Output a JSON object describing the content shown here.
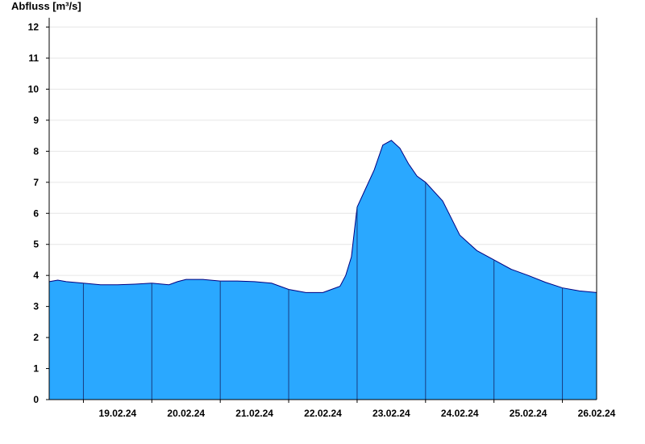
{
  "chart_data": {
    "type": "area",
    "title": "",
    "xlabel": "",
    "ylabel": "Abfluss [m³/s]",
    "ylim": [
      0,
      12.3
    ],
    "yticks": [
      0,
      1,
      2,
      3,
      4,
      5,
      6,
      7,
      8,
      9,
      10,
      11,
      12
    ],
    "xlim": [
      "18.02.24 12:00",
      "26.02.24 12:00"
    ],
    "day_labels": [
      "19.02.24",
      "20.02.24",
      "21.02.24",
      "22.02.24",
      "23.02.24",
      "24.02.24",
      "25.02.24",
      "26.02.24"
    ],
    "grid": "horizontal",
    "fill_color": "#2aa8ff",
    "line_color": "#000080",
    "series": [
      {
        "x": [
          "18.02.24 12:00",
          "18.02.24 15:00",
          "18.02.24 18:00",
          "19.02.24 00:00",
          "19.02.24 06:00",
          "19.02.24 12:00",
          "19.02.24 18:00",
          "20.02.24 00:00",
          "20.02.24 06:00",
          "20.02.24 09:00",
          "20.02.24 12:00",
          "20.02.24 18:00",
          "21.02.24 00:00",
          "21.02.24 06:00",
          "21.02.24 12:00",
          "21.02.24 18:00",
          "22.02.24 00:00",
          "22.02.24 06:00",
          "22.02.24 12:00",
          "22.02.24 15:00",
          "22.02.24 18:00",
          "22.02.24 20:00",
          "22.02.24 22:00",
          "23.02.24 00:00",
          "23.02.24 03:00",
          "23.02.24 06:00",
          "23.02.24 09:00",
          "23.02.24 12:00",
          "23.02.24 15:00",
          "23.02.24 18:00",
          "23.02.24 21:00",
          "24.02.24 00:00",
          "24.02.24 06:00",
          "24.02.24 12:00",
          "24.02.24 18:00",
          "25.02.24 00:00",
          "25.02.24 06:00",
          "25.02.24 12:00",
          "25.02.24 18:00",
          "26.02.24 00:00",
          "26.02.24 06:00",
          "26.02.24 12:00"
        ],
        "values": [
          3.8,
          3.85,
          3.8,
          3.75,
          3.7,
          3.7,
          3.72,
          3.75,
          3.7,
          3.8,
          3.87,
          3.87,
          3.82,
          3.82,
          3.8,
          3.75,
          3.55,
          3.45,
          3.45,
          3.55,
          3.65,
          4.0,
          4.6,
          6.2,
          6.8,
          7.4,
          8.2,
          8.35,
          8.1,
          7.6,
          7.2,
          7.0,
          6.4,
          5.3,
          4.8,
          4.5,
          4.2,
          4.0,
          3.78,
          3.6,
          3.5,
          3.45
        ]
      }
    ]
  }
}
